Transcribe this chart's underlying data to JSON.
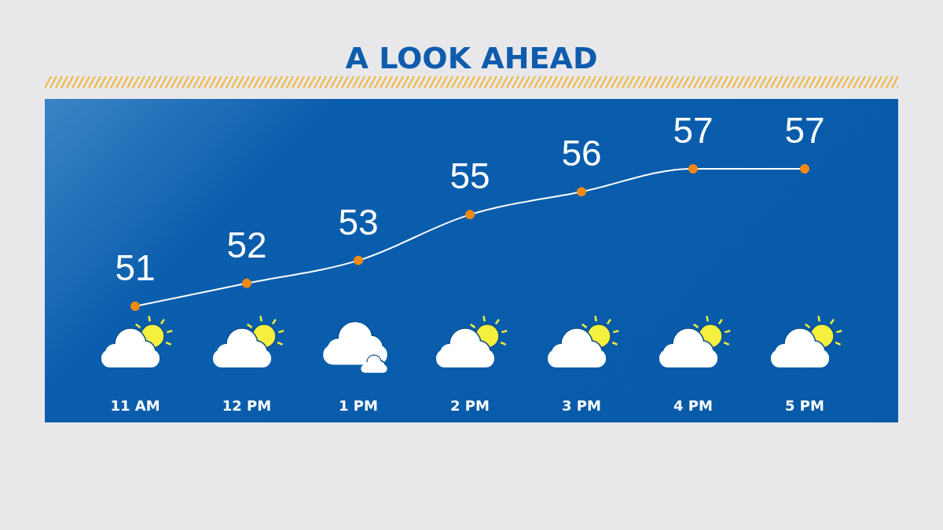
{
  "chart_data": {
    "type": "line",
    "title": "A LOOK AHEAD",
    "categories": [
      "11 AM",
      "12 PM",
      "1 PM",
      "2 PM",
      "3 PM",
      "4 PM",
      "5 PM"
    ],
    "series": [
      {
        "color": "#ffffff",
        "values": [
          51,
          52,
          53,
          55,
          56,
          57,
          57
        ]
      }
    ],
    "data_labels": true,
    "marker": "circle",
    "line_style": "solid",
    "grid": false,
    "tick_labels": "x"
  }
}
